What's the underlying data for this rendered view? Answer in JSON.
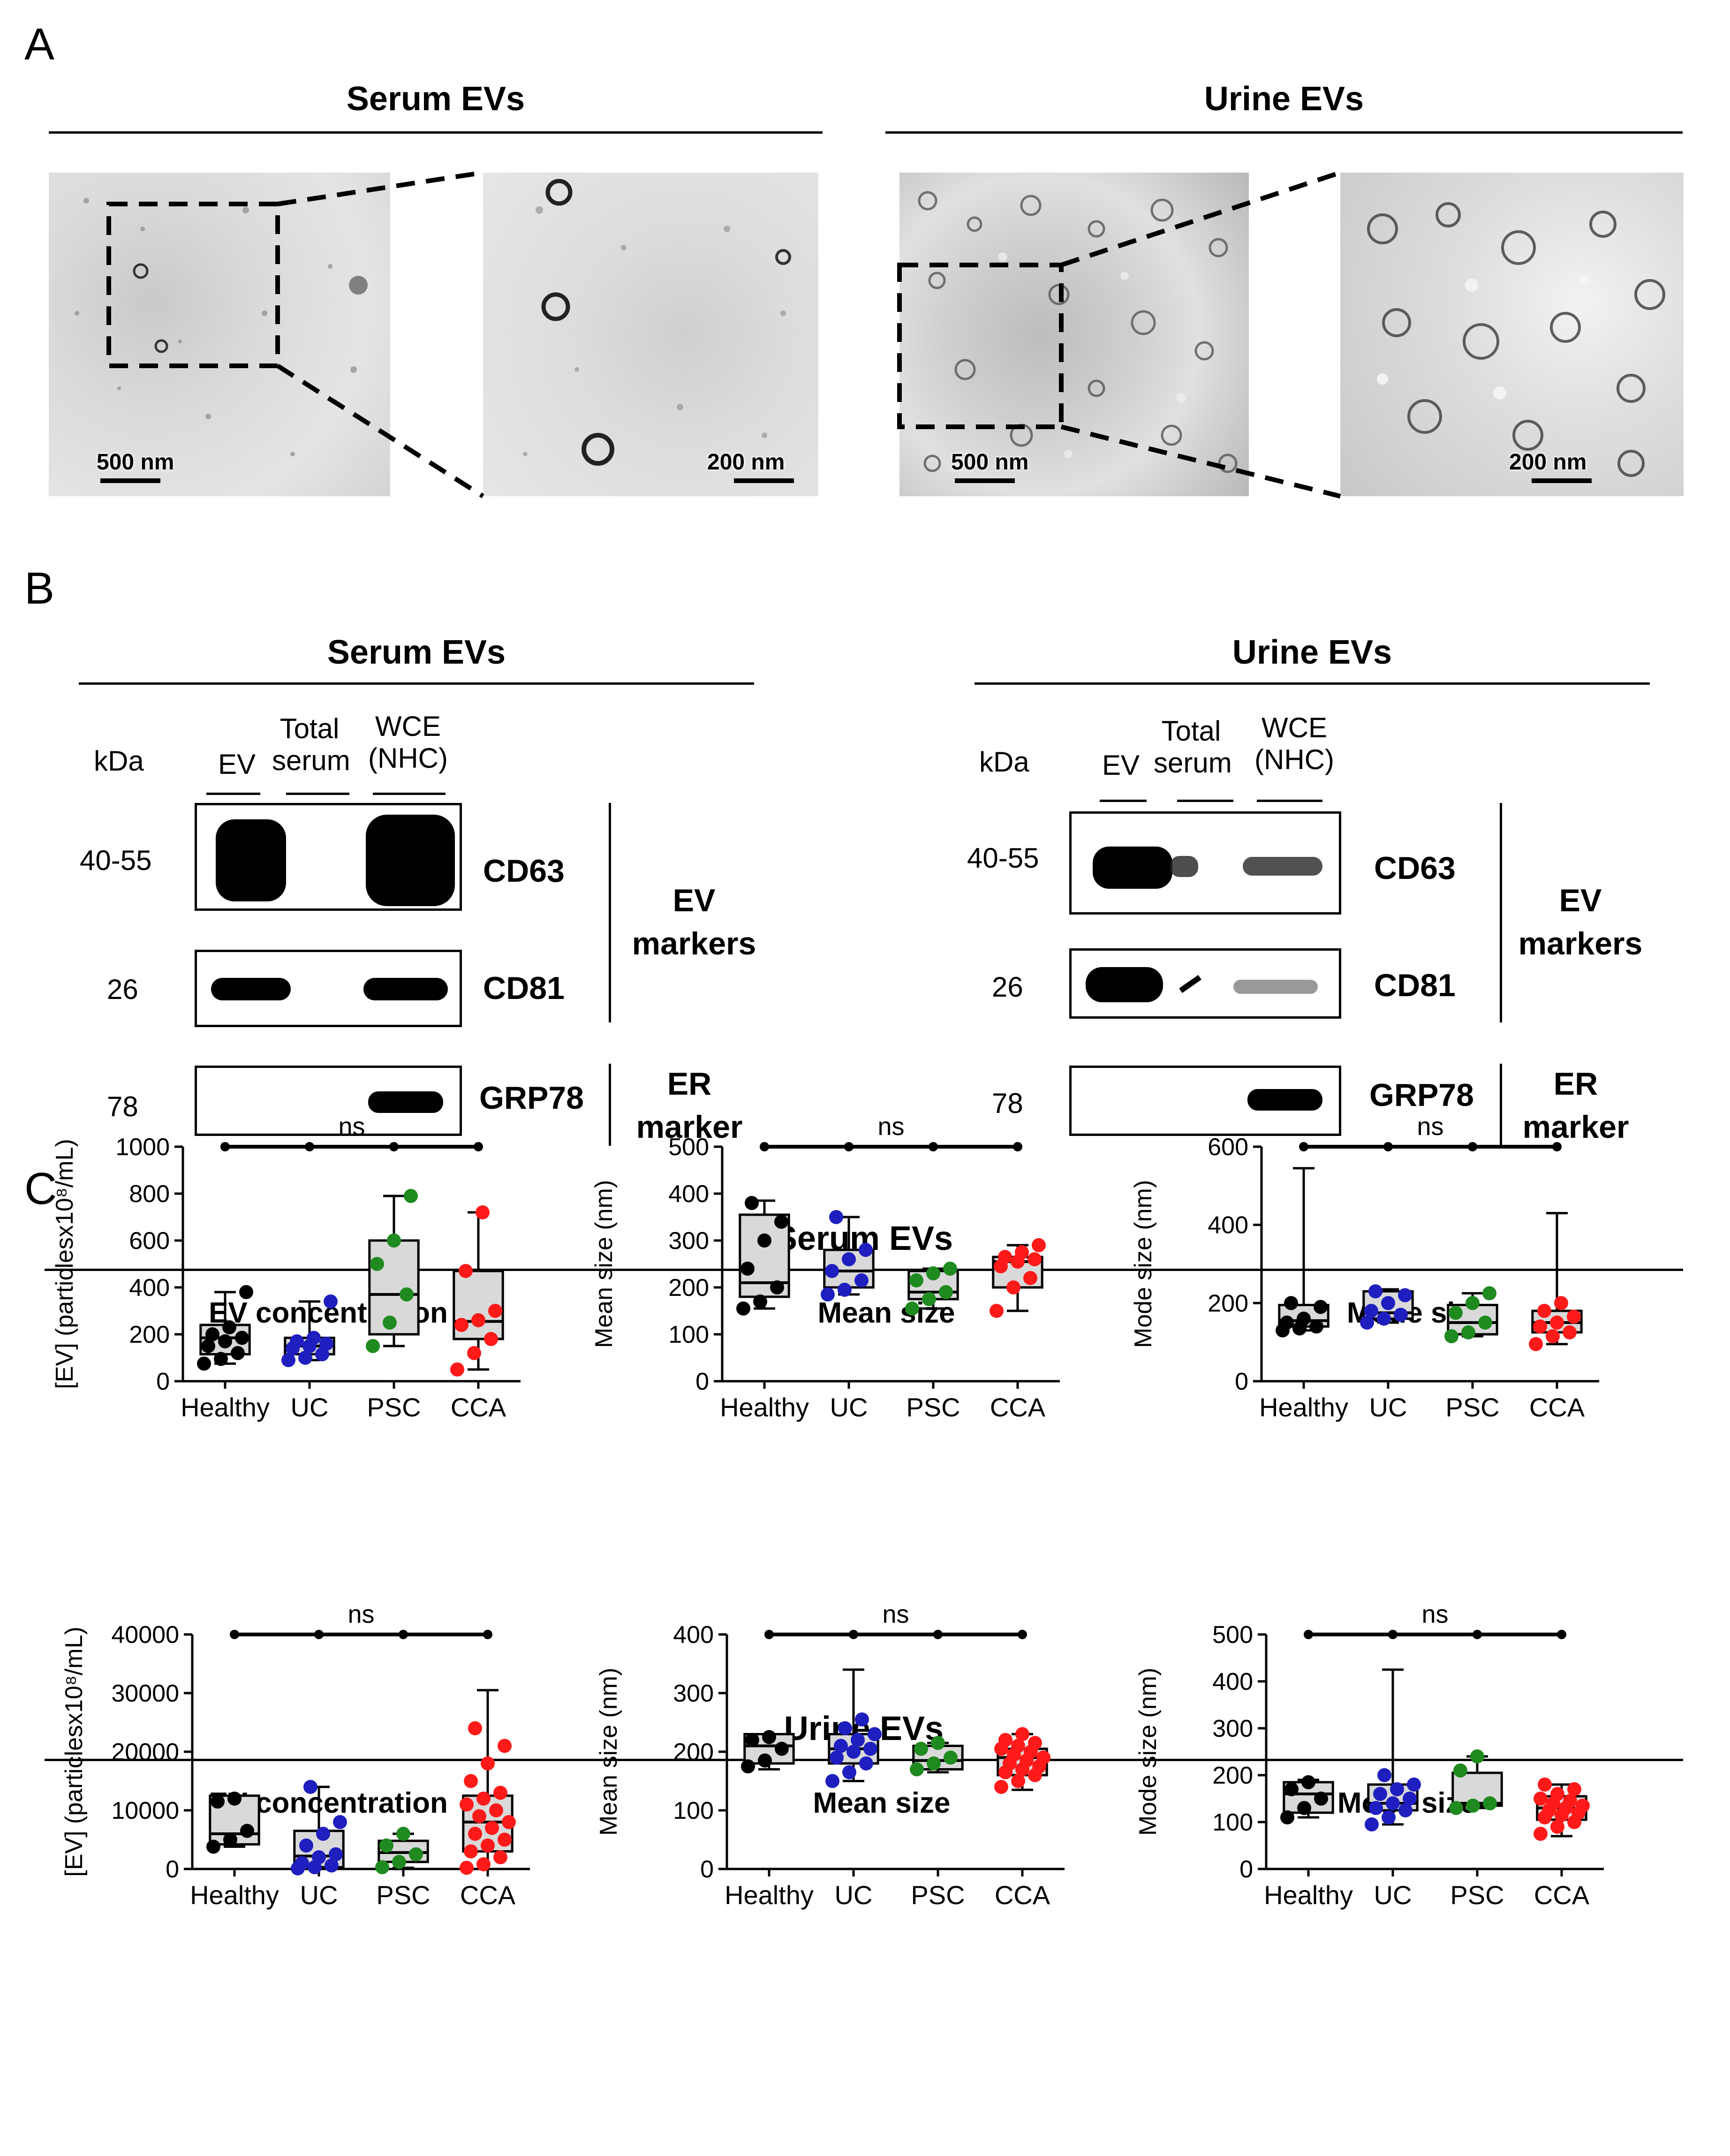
{
  "panels": {
    "a": {
      "letter": "A",
      "serum": {
        "title": "Serum EVs",
        "scale_left": "500 nm",
        "scale_right": "200 nm"
      },
      "urine": {
        "title": "Urine EVs",
        "scale_left": "500 nm",
        "scale_right": "200 nm"
      }
    },
    "b": {
      "letter": "B",
      "serum": {
        "title": "Serum EVs",
        "kda": "kDa",
        "lanes": [
          "EV",
          "Total serum",
          "WCE (NHC)"
        ],
        "rows": [
          {
            "mw": "40-55",
            "protein": "CD63"
          },
          {
            "mw": "26",
            "protein": "CD81"
          },
          {
            "mw": "78",
            "protein": "GRP78"
          }
        ],
        "group_ev": "EV markers",
        "group_er": "ER marker"
      },
      "urine": {
        "title": "Urine EVs",
        "kda": "kDa",
        "lanes": [
          "EV",
          "Total serum",
          "WCE (NHC)"
        ],
        "rows": [
          {
            "mw": "40-55",
            "protein": "CD63"
          },
          {
            "mw": "26",
            "protein": "CD81"
          },
          {
            "mw": "78",
            "protein": "GRP78"
          }
        ],
        "group_ev": "EV markers",
        "group_er": "ER marker"
      }
    },
    "c": {
      "letter": "C",
      "serum_title": "Serum EVs",
      "urine_title": "Urine EVs"
    }
  },
  "colors": {
    "Healthy": "#000000",
    "UC": "#1f1fbf",
    "PSC": "#1f8a1f",
    "CCA": "#ff1a1a",
    "box_fill": "#d9d9d9"
  },
  "chart_data": [
    {
      "type": "box",
      "section": "Serum EVs",
      "title": "EV concentration",
      "ylabel": "[EV] (particlesx10⁸/mL)",
      "categories": [
        "Healthy",
        "UC",
        "PSC",
        "CCA"
      ],
      "ylim": [
        0,
        1000
      ],
      "yticks": [
        0,
        200,
        400,
        600,
        800,
        1000
      ],
      "significance": "ns",
      "series": [
        {
          "name": "Healthy",
          "min": 75,
          "q1": 115,
          "median": 185,
          "q3": 240,
          "max": 380,
          "points": [
            75,
            95,
            120,
            150,
            170,
            185,
            200,
            230,
            380
          ]
        },
        {
          "name": "UC",
          "min": 90,
          "q1": 115,
          "median": 150,
          "q3": 185,
          "max": 340,
          "points": [
            90,
            100,
            115,
            140,
            150,
            160,
            170,
            185,
            340
          ]
        },
        {
          "name": "PSC",
          "min": 150,
          "q1": 200,
          "median": 370,
          "q3": 600,
          "max": 790,
          "points": [
            150,
            250,
            370,
            500,
            600,
            790
          ]
        },
        {
          "name": "CCA",
          "min": 50,
          "q1": 180,
          "median": 255,
          "q3": 470,
          "max": 720,
          "points": [
            50,
            120,
            180,
            240,
            260,
            300,
            470,
            720
          ]
        }
      ]
    },
    {
      "type": "box",
      "section": "Serum EVs",
      "title": "Mean size",
      "ylabel": "Mean size (nm)",
      "categories": [
        "Healthy",
        "UC",
        "PSC",
        "CCA"
      ],
      "ylim": [
        0,
        500
      ],
      "yticks": [
        0,
        100,
        200,
        300,
        400,
        500
      ],
      "significance": "ns",
      "series": [
        {
          "name": "Healthy",
          "min": 155,
          "q1": 180,
          "median": 210,
          "q3": 355,
          "max": 385,
          "points": [
            155,
            170,
            200,
            240,
            300,
            340,
            380
          ]
        },
        {
          "name": "UC",
          "min": 185,
          "q1": 200,
          "median": 235,
          "q3": 280,
          "max": 350,
          "points": [
            185,
            195,
            215,
            235,
            260,
            280,
            350
          ]
        },
        {
          "name": "PSC",
          "min": 155,
          "q1": 175,
          "median": 190,
          "q3": 235,
          "max": 240,
          "points": [
            155,
            175,
            190,
            215,
            230,
            240
          ]
        },
        {
          "name": "CCA",
          "min": 150,
          "q1": 200,
          "median": 255,
          "q3": 265,
          "max": 290,
          "points": [
            150,
            200,
            220,
            245,
            255,
            260,
            265,
            275,
            290
          ]
        }
      ]
    },
    {
      "type": "box",
      "section": "Serum EVs",
      "title": "Mode size",
      "ylabel": "Mode size (nm)",
      "categories": [
        "Healthy",
        "UC",
        "PSC",
        "CCA"
      ],
      "ylim": [
        0,
        600
      ],
      "yticks": [
        0,
        200,
        400,
        600
      ],
      "significance": "ns",
      "series": [
        {
          "name": "Healthy",
          "min": 130,
          "q1": 140,
          "median": 155,
          "q3": 195,
          "max": 545,
          "points": [
            130,
            135,
            140,
            150,
            160,
            190,
            200
          ]
        },
        {
          "name": "UC",
          "min": 150,
          "q1": 160,
          "median": 175,
          "q3": 230,
          "max": 235,
          "points": [
            150,
            160,
            170,
            180,
            200,
            220,
            230
          ]
        },
        {
          "name": "PSC",
          "min": 115,
          "q1": 120,
          "median": 150,
          "q3": 195,
          "max": 225,
          "points": [
            115,
            125,
            150,
            175,
            200,
            225
          ]
        },
        {
          "name": "CCA",
          "min": 95,
          "q1": 125,
          "median": 150,
          "q3": 180,
          "max": 430,
          "points": [
            95,
            115,
            125,
            140,
            150,
            165,
            180,
            200
          ]
        }
      ]
    },
    {
      "type": "box",
      "section": "Urine EVs",
      "title": "EV concentration",
      "ylabel": "[EV] (particlesx10⁸/mL)",
      "categories": [
        "Healthy",
        "UC",
        "PSC",
        "CCA"
      ],
      "ylim": [
        0,
        40000
      ],
      "yticks": [
        0,
        10000,
        20000,
        30000,
        40000
      ],
      "significance": "ns",
      "series": [
        {
          "name": "Healthy",
          "min": 3800,
          "q1": 4200,
          "median": 6000,
          "q3": 12500,
          "max": 12500,
          "points": [
            3800,
            5000,
            6500,
            11500,
            12000
          ]
        },
        {
          "name": "UC",
          "min": 0,
          "q1": 300,
          "median": 2200,
          "q3": 6500,
          "max": 14000,
          "points": [
            100,
            300,
            600,
            1000,
            2000,
            2500,
            4000,
            6000,
            8000,
            14000
          ]
        },
        {
          "name": "PSC",
          "min": 200,
          "q1": 1200,
          "median": 2800,
          "q3": 4800,
          "max": 6000,
          "points": [
            300,
            1200,
            2500,
            4000,
            6000
          ]
        },
        {
          "name": "CCA",
          "min": 0,
          "q1": 3000,
          "median": 8000,
          "q3": 12500,
          "max": 30500,
          "points": [
            200,
            800,
            2000,
            3000,
            4000,
            5000,
            6000,
            7000,
            8000,
            9000,
            10000,
            11000,
            12000,
            13000,
            15000,
            18000,
            21000,
            24000
          ]
        }
      ]
    },
    {
      "type": "box",
      "section": "Urine EVs",
      "title": "Mean size",
      "ylabel": "Mean size (nm)",
      "categories": [
        "Healthy",
        "UC",
        "PSC",
        "CCA"
      ],
      "ylim": [
        0,
        400
      ],
      "yticks": [
        0,
        100,
        200,
        300,
        400
      ],
      "significance": "ns",
      "series": [
        {
          "name": "Healthy",
          "min": 170,
          "q1": 180,
          "median": 210,
          "q3": 230,
          "max": 230,
          "points": [
            175,
            185,
            205,
            220,
            225
          ]
        },
        {
          "name": "UC",
          "min": 150,
          "q1": 180,
          "median": 205,
          "q3": 230,
          "max": 340,
          "points": [
            150,
            165,
            180,
            190,
            200,
            205,
            210,
            220,
            230,
            240,
            255
          ]
        },
        {
          "name": "PSC",
          "min": 165,
          "q1": 170,
          "median": 185,
          "q3": 210,
          "max": 215,
          "points": [
            170,
            180,
            190,
            205,
            215
          ]
        },
        {
          "name": "CCA",
          "min": 135,
          "q1": 160,
          "median": 190,
          "q3": 205,
          "max": 230,
          "points": [
            140,
            150,
            160,
            165,
            170,
            175,
            180,
            185,
            190,
            195,
            200,
            205,
            210,
            215,
            220,
            230
          ]
        }
      ]
    },
    {
      "type": "box",
      "section": "Urine EVs",
      "title": "Mode size",
      "ylabel": "Mode size (nm)",
      "categories": [
        "Healthy",
        "UC",
        "PSC",
        "CCA"
      ],
      "ylim": [
        0,
        500
      ],
      "yticks": [
        0,
        100,
        200,
        300,
        400,
        500
      ],
      "significance": "ns",
      "series": [
        {
          "name": "Healthy",
          "min": 110,
          "q1": 120,
          "median": 160,
          "q3": 185,
          "max": 190,
          "points": [
            110,
            130,
            150,
            170,
            185
          ]
        },
        {
          "name": "UC",
          "min": 95,
          "q1": 125,
          "median": 140,
          "q3": 180,
          "max": 425,
          "points": [
            95,
            110,
            125,
            130,
            140,
            150,
            160,
            170,
            180,
            200
          ]
        },
        {
          "name": "PSC",
          "min": 130,
          "q1": 135,
          "median": 140,
          "q3": 205,
          "max": 240,
          "points": [
            130,
            135,
            140,
            210,
            240
          ]
        },
        {
          "name": "CCA",
          "min": 70,
          "q1": 105,
          "median": 130,
          "q3": 155,
          "max": 180,
          "points": [
            75,
            90,
            100,
            110,
            115,
            120,
            125,
            130,
            135,
            140,
            145,
            150,
            160,
            170,
            180
          ]
        }
      ]
    }
  ]
}
